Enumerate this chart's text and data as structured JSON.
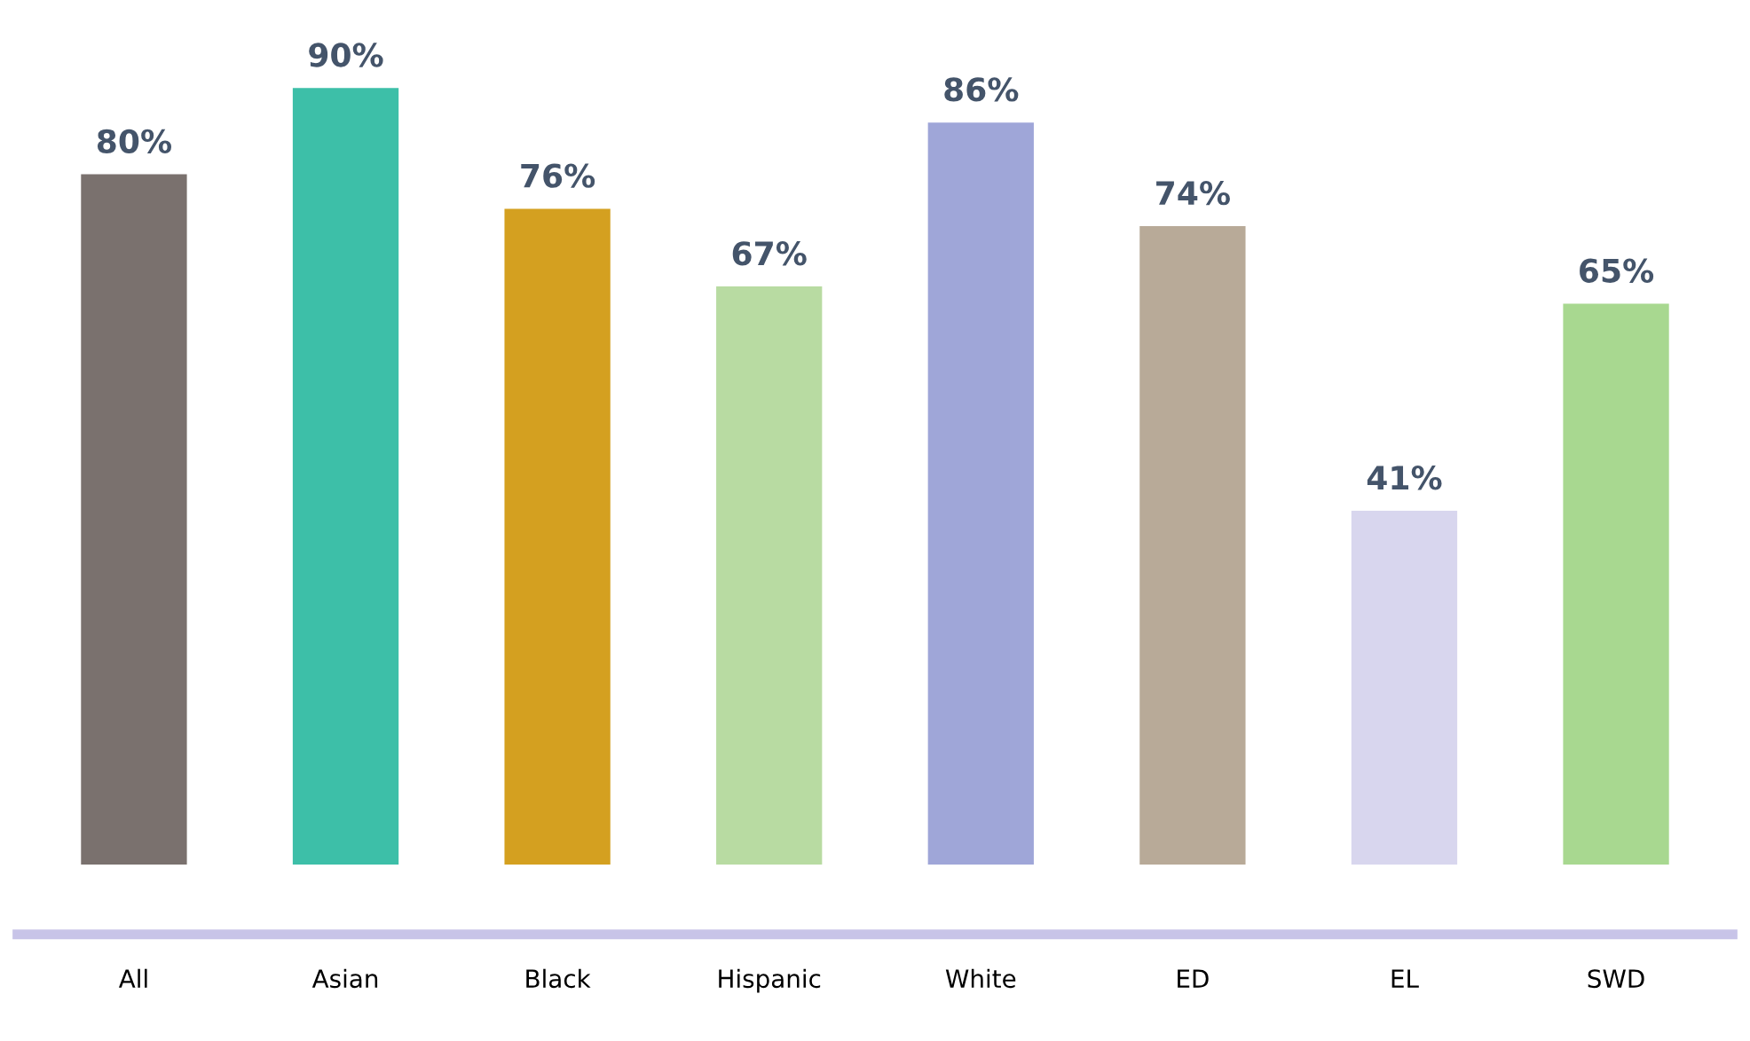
{
  "chart_data": {
    "type": "bar",
    "categories": [
      "All",
      "Asian",
      "Black",
      "Hispanic",
      "White",
      "ED",
      "EL",
      "SWD"
    ],
    "values": [
      80,
      90,
      76,
      67,
      86,
      74,
      41,
      65
    ],
    "colors": [
      "#7a716e",
      "#3dbfa8",
      "#d4a020",
      "#b8dba2",
      "#9fa6d8",
      "#b8aa98",
      "#d8d6ee",
      "#a8d890"
    ],
    "value_labels": [
      "80%",
      "90%",
      "76%",
      "67%",
      "86%",
      "74%",
      "41%",
      "65%"
    ],
    "grid": false,
    "legend": false
  }
}
